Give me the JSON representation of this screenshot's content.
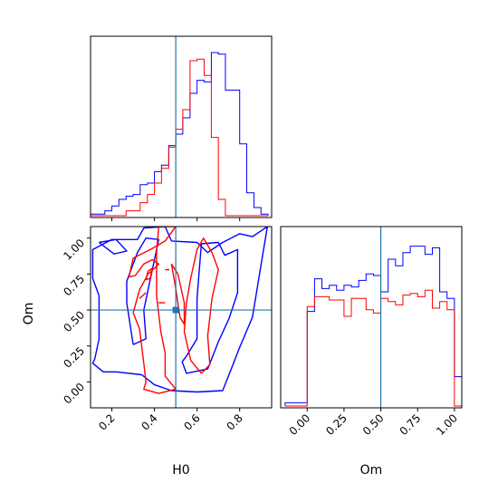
{
  "chart_data": {
    "type": "corner",
    "parameters": [
      "H0",
      "Om"
    ],
    "truths": {
      "H0": 0.5,
      "Om": 0.5
    },
    "colors": {
      "blue": "#0000ff",
      "red": "#ff0000",
      "truth": "#1f77b4"
    },
    "panels": [
      {
        "id": "hist-H0",
        "type": "histogram",
        "x_param": "H0",
        "xlim": [
          0.1,
          0.95
        ],
        "tick_values": [
          0.2,
          0.4,
          0.6,
          0.8
        ],
        "bin_edges": [
          0.1,
          0.133,
          0.167,
          0.2,
          0.233,
          0.267,
          0.3,
          0.333,
          0.367,
          0.4,
          0.433,
          0.467,
          0.5,
          0.533,
          0.567,
          0.6,
          0.633,
          0.667,
          0.7,
          0.733,
          0.767,
          0.8,
          0.833,
          0.867,
          0.9,
          0.933
        ],
        "series": [
          {
            "color": "blue",
            "values": [
              0.01,
              0.01,
              0.03,
              0.06,
              0.1,
              0.12,
              0.13,
              0.19,
              0.2,
              0.27,
              0.31,
              0.43,
              0.5,
              0.6,
              0.75,
              0.83,
              0.82,
              1.0,
              0.99,
              0.77,
              0.77,
              0.44,
              0.14,
              0.05,
              0.01
            ]
          },
          {
            "color": "red",
            "values": [
              0,
              0,
              0,
              0,
              0,
              0.03,
              0.03,
              0.08,
              0.13,
              0.2,
              0.29,
              0.42,
              0.53,
              0.65,
              0.95,
              0.96,
              0.86,
              0.48,
              0.1,
              0,
              0,
              0,
              0,
              0,
              0
            ]
          }
        ]
      },
      {
        "id": "hist-Om",
        "type": "histogram",
        "x_param": "Om",
        "x_label": "Om",
        "xlim": [
          -0.18,
          1.05
        ],
        "tick_labels": [
          "0.00",
          "0.25",
          "0.50",
          "0.75",
          "1.00"
        ],
        "tick_values": [
          0.0,
          0.25,
          0.5,
          0.75,
          1.0
        ],
        "bin_edges": [
          -0.15,
          -0.1,
          -0.05,
          0.0,
          0.05,
          0.1,
          0.15,
          0.2,
          0.25,
          0.3,
          0.35,
          0.4,
          0.45,
          0.5,
          0.55,
          0.6,
          0.65,
          0.7,
          0.75,
          0.8,
          0.85,
          0.9,
          0.95,
          1.0,
          1.05
        ],
        "series": [
          {
            "color": "blue",
            "values": [
              0.02,
              0.02,
              0.02,
              0.58,
              0.78,
              0.72,
              0.74,
              0.71,
              0.74,
              0.73,
              0.77,
              0.81,
              0.8,
              0.7,
              0.9,
              0.86,
              0.94,
              0.98,
              0.98,
              0.93,
              0.97,
              0.7,
              0.66,
              0.18,
              0.18
            ]
          },
          {
            "color": "red",
            "values": [
              0,
              0,
              0,
              0.61,
              0.67,
              0.67,
              0.65,
              0.65,
              0.55,
              0.66,
              0.66,
              0.59,
              0.57,
              0.66,
              0.64,
              0.62,
              0.68,
              0.69,
              0.67,
              0.71,
              0.6,
              0.64,
              0.59,
              0,
              0
            ]
          }
        ]
      },
      {
        "id": "contour-H0-Om",
        "type": "contour",
        "x_param": "H0",
        "y_param": "Om",
        "x_label": "H0",
        "y_label": "Om",
        "xlim": [
          0.1,
          0.95
        ],
        "ylim": [
          -0.18,
          1.08
        ],
        "x_tick_labels": [
          "0.2",
          "0.4",
          "0.6",
          "0.8"
        ],
        "x_tick_values": [
          0.2,
          0.4,
          0.6,
          0.8
        ],
        "y_tick_labels": [
          "0.00",
          "0.25",
          "0.50",
          "0.75",
          "1.00"
        ],
        "y_tick_values": [
          0.0,
          0.25,
          0.5,
          0.75,
          1.0
        ],
        "contours": [
          {
            "color": "blue",
            "points": [
              [
                0.14,
                0.6
              ],
              [
                0.11,
                0.72
              ],
              [
                0.11,
                0.92
              ],
              [
                0.2,
                0.99
              ],
              [
                0.32,
                0.99
              ],
              [
                0.35,
                1.07
              ],
              [
                0.45,
                1.08
              ],
              [
                0.48,
                0.98
              ],
              [
                0.6,
                0.97
              ],
              [
                0.65,
                0.9
              ],
              [
                0.72,
                0.97
              ],
              [
                0.8,
                1.03
              ],
              [
                0.86,
                1.01
              ],
              [
                0.93,
                1.08
              ],
              [
                0.9,
                0.81
              ],
              [
                0.86,
                0.45
              ],
              [
                0.8,
                0.24
              ],
              [
                0.75,
                0.05
              ],
              [
                0.72,
                -0.06
              ],
              [
                0.6,
                -0.07
              ],
              [
                0.48,
                -0.06
              ],
              [
                0.4,
                -0.02
              ],
              [
                0.34,
                0.05
              ],
              [
                0.22,
                0.07
              ],
              [
                0.16,
                0.07
              ],
              [
                0.11,
                0.13
              ],
              [
                0.12,
                0.16
              ],
              [
                0.14,
                0.3
              ],
              [
                0.14,
                0.45
              ],
              [
                0.14,
                0.6
              ]
            ]
          },
          {
            "color": "blue",
            "points": [
              [
                0.14,
                0.97
              ],
              [
                0.21,
                0.89
              ],
              [
                0.27,
                0.91
              ],
              [
                0.22,
                0.99
              ],
              [
                0.14,
                0.97
              ]
            ]
          },
          {
            "color": "blue",
            "points": [
              [
                0.3,
                0.26
              ],
              [
                0.27,
                0.55
              ],
              [
                0.27,
                0.7
              ],
              [
                0.32,
                0.9
              ],
              [
                0.36,
                1.0
              ],
              [
                0.42,
                0.99
              ],
              [
                0.35,
                0.5
              ],
              [
                0.36,
                0.3
              ],
              [
                0.3,
                0.26
              ]
            ]
          },
          {
            "color": "blue",
            "points": [
              [
                0.6,
                0.58
              ],
              [
                0.62,
                0.96
              ],
              [
                0.7,
                0.97
              ],
              [
                0.73,
                0.88
              ],
              [
                0.79,
                0.92
              ],
              [
                0.79,
                0.62
              ],
              [
                0.75,
                0.44
              ],
              [
                0.7,
                0.28
              ],
              [
                0.65,
                0.09
              ],
              [
                0.55,
                0.06
              ],
              [
                0.53,
                0.14
              ],
              [
                0.55,
                0.18
              ],
              [
                0.6,
                0.3
              ],
              [
                0.6,
                0.58
              ]
            ]
          },
          {
            "color": "red",
            "points": [
              [
                0.28,
                0.73
              ],
              [
                0.31,
                0.74
              ],
              [
                0.35,
                0.82
              ],
              [
                0.39,
                0.85
              ],
              [
                0.42,
                0.82
              ],
              [
                0.4,
                0.79
              ],
              [
                0.37,
                0.75
              ],
              [
                0.33,
                0.64
              ],
              [
                0.3,
                0.48
              ],
              [
                0.33,
                0.37
              ],
              [
                0.35,
                0.13
              ],
              [
                0.36,
                0.0
              ],
              [
                0.35,
                -0.05
              ],
              [
                0.42,
                -0.08
              ],
              [
                0.5,
                -0.05
              ],
              [
                0.45,
                0.04
              ],
              [
                0.45,
                0.2
              ],
              [
                0.43,
                0.35
              ],
              [
                0.41,
                0.6
              ],
              [
                0.41,
                0.9
              ],
              [
                0.42,
                1.08
              ],
              [
                0.5,
                1.08
              ],
              [
                0.45,
                0.98
              ],
              [
                0.38,
                0.92
              ],
              [
                0.3,
                0.86
              ],
              [
                0.28,
                0.73
              ]
            ]
          },
          {
            "color": "red",
            "points": [
              [
                0.62,
                0.06
              ],
              [
                0.57,
                0.15
              ],
              [
                0.54,
                0.35
              ],
              [
                0.55,
                0.55
              ],
              [
                0.57,
                0.72
              ],
              [
                0.6,
                0.92
              ],
              [
                0.63,
                1.0
              ],
              [
                0.67,
                0.9
              ],
              [
                0.7,
                0.78
              ],
              [
                0.67,
                0.58
              ],
              [
                0.65,
                0.32
              ],
              [
                0.66,
                0.12
              ],
              [
                0.62,
                0.06
              ]
            ]
          },
          {
            "color": "red",
            "points": [
              [
                0.48,
                0.82
              ],
              [
                0.5,
                0.65
              ],
              [
                0.52,
                0.45
              ],
              [
                0.54,
                0.4
              ],
              [
                0.54,
                0.55
              ],
              [
                0.51,
                0.75
              ],
              [
                0.48,
                0.82
              ]
            ]
          },
          {
            "color": "red",
            "points": [
              [
                0.36,
                0.71
              ],
              [
                0.37,
                0.77
              ],
              [
                0.39,
                0.79
              ],
              [
                0.38,
                0.72
              ],
              [
                0.36,
                0.71
              ]
            ]
          }
        ],
        "extra_marks": [
          {
            "color": "red",
            "points": [
              [
                0.42,
                0.55
              ],
              [
                0.45,
                0.55
              ]
            ]
          },
          {
            "color": "red",
            "points": [
              [
                0.45,
                0.78
              ],
              [
                0.47,
                0.78
              ]
            ]
          },
          {
            "color": "red",
            "points": [
              [
                0.33,
                0.58
              ],
              [
                0.36,
                0.62
              ]
            ]
          }
        ]
      }
    ]
  }
}
